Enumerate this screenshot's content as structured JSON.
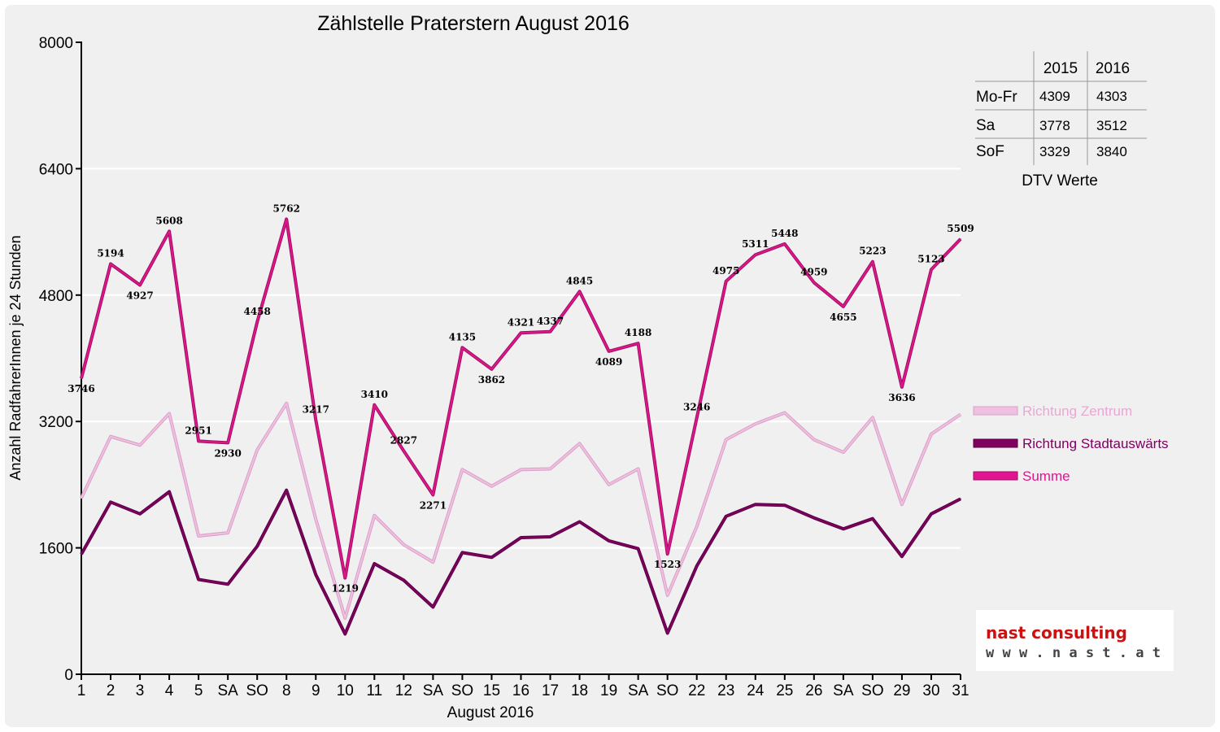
{
  "chart_data": {
    "type": "line",
    "title": "Zählstelle Praterstern August 2016",
    "xlabel": "August 2016",
    "ylabel": "Anzahl RadfahrerInnen je 24 Stunden",
    "ylim": [
      0,
      8000
    ],
    "yticks": [
      0,
      1600,
      3200,
      4800,
      6400,
      8000
    ],
    "categories": [
      "1",
      "2",
      "3",
      "4",
      "5",
      "SA",
      "SO",
      "8",
      "9",
      "10",
      "11",
      "12",
      "SA",
      "SO",
      "15",
      "16",
      "17",
      "18",
      "19",
      "SA",
      "SO",
      "22",
      "23",
      "24",
      "25",
      "26",
      "SA",
      "SO",
      "29",
      "30",
      "31"
    ],
    "red_categories": [
      6,
      13,
      14,
      20,
      27
    ],
    "grid": "horizontal",
    "legend_position": "right",
    "series": [
      {
        "name": "Richtung Zentrum",
        "color": "#f0c0e0",
        "values": [
          2230,
          3010,
          2900,
          3300,
          1750,
          1790,
          2840,
          3430,
          1960,
          710,
          2010,
          1640,
          1420,
          2590,
          2380,
          2590,
          2600,
          2920,
          2400,
          2600,
          1000,
          1870,
          2970,
          3170,
          3310,
          2970,
          2810,
          3250,
          2150,
          3040,
          3290
        ]
      },
      {
        "name": "Richtung Stadtauswärts",
        "color": "#800060",
        "values": [
          1520,
          2180,
          2030,
          2310,
          1200,
          1140,
          1620,
          2330,
          1260,
          510,
          1400,
          1190,
          850,
          1540,
          1480,
          1730,
          1740,
          1930,
          1690,
          1590,
          520,
          1370,
          2000,
          2150,
          2140,
          1980,
          1840,
          1970,
          1490,
          2030,
          2220
        ]
      },
      {
        "name": "Summe",
        "color": "#e0158f",
        "values": [
          3746,
          5194,
          4927,
          5608,
          2951,
          2930,
          4458,
          5762,
          3217,
          1219,
          3410,
          2827,
          2271,
          4135,
          3862,
          4321,
          4337,
          4845,
          4089,
          4188,
          1523,
          3246,
          4975,
          5311,
          5448,
          4959,
          4655,
          5223,
          3636,
          5123,
          5509
        ]
      }
    ],
    "data_labels": [
      "3746",
      "5194",
      "4927",
      "5608",
      "2951",
      "2930",
      "4458",
      "5762",
      "3217",
      "1219",
      "3410",
      "2827",
      "2271",
      "4135",
      "3862",
      "4321",
      "4337",
      "4845",
      "4089",
      "4188",
      "1523",
      "3246",
      "4975",
      "5311",
      "5448",
      "4959",
      "4655",
      "5223",
      "3636",
      "5123",
      "5509"
    ]
  },
  "dtv_table": {
    "headers": [
      "2015",
      "2016"
    ],
    "rows": [
      {
        "label": "Mo-Fr",
        "v2015": "4309",
        "v2016": "4303"
      },
      {
        "label": "Sa",
        "v2015": "3778",
        "v2016": "3512"
      },
      {
        "label": "SoF",
        "v2015": "3329",
        "v2016": "3840"
      }
    ],
    "caption": "DTV Werte"
  },
  "logo": {
    "line1": "nast consulting",
    "line2": "w w w . n a s t . a t",
    "line1_color": "#cc1111"
  }
}
